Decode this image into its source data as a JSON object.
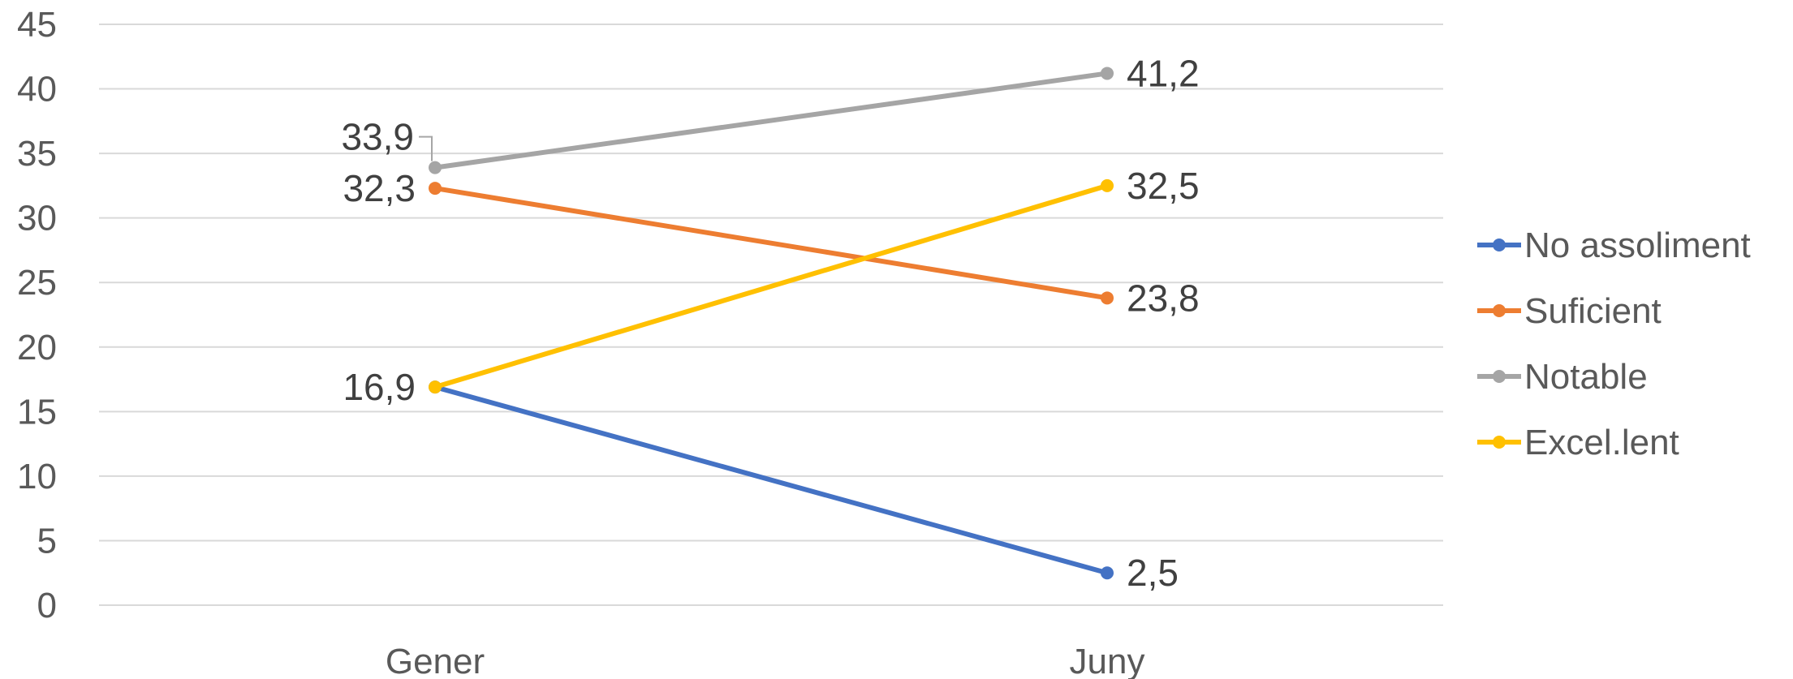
{
  "chart_data": {
    "type": "line",
    "categories": [
      "Gener",
      "Juny"
    ],
    "series": [
      {
        "name": "No assoliment",
        "values": [
          16.9,
          2.5
        ],
        "labels": [
          "16,9",
          "2,5"
        ],
        "color": "#4472C4"
      },
      {
        "name": "Suficient",
        "values": [
          32.3,
          23.8
        ],
        "labels": [
          "32,3",
          "23,8"
        ],
        "color": "#ED7D31"
      },
      {
        "name": "Notable",
        "values": [
          33.9,
          41.2
        ],
        "labels": [
          "33,9",
          "41,2"
        ],
        "color": "#A5A5A5"
      },
      {
        "name": "Excel.lent",
        "values": [
          16.9,
          32.5
        ],
        "labels": [
          "",
          "32,5"
        ],
        "color": "#FFC000"
      }
    ],
    "ylim": [
      0,
      45
    ],
    "yticks": [
      0,
      5,
      10,
      15,
      20,
      25,
      30,
      35,
      40,
      45
    ],
    "title": "",
    "xlabel": "",
    "ylabel": "",
    "grid": true,
    "legend": "right"
  }
}
